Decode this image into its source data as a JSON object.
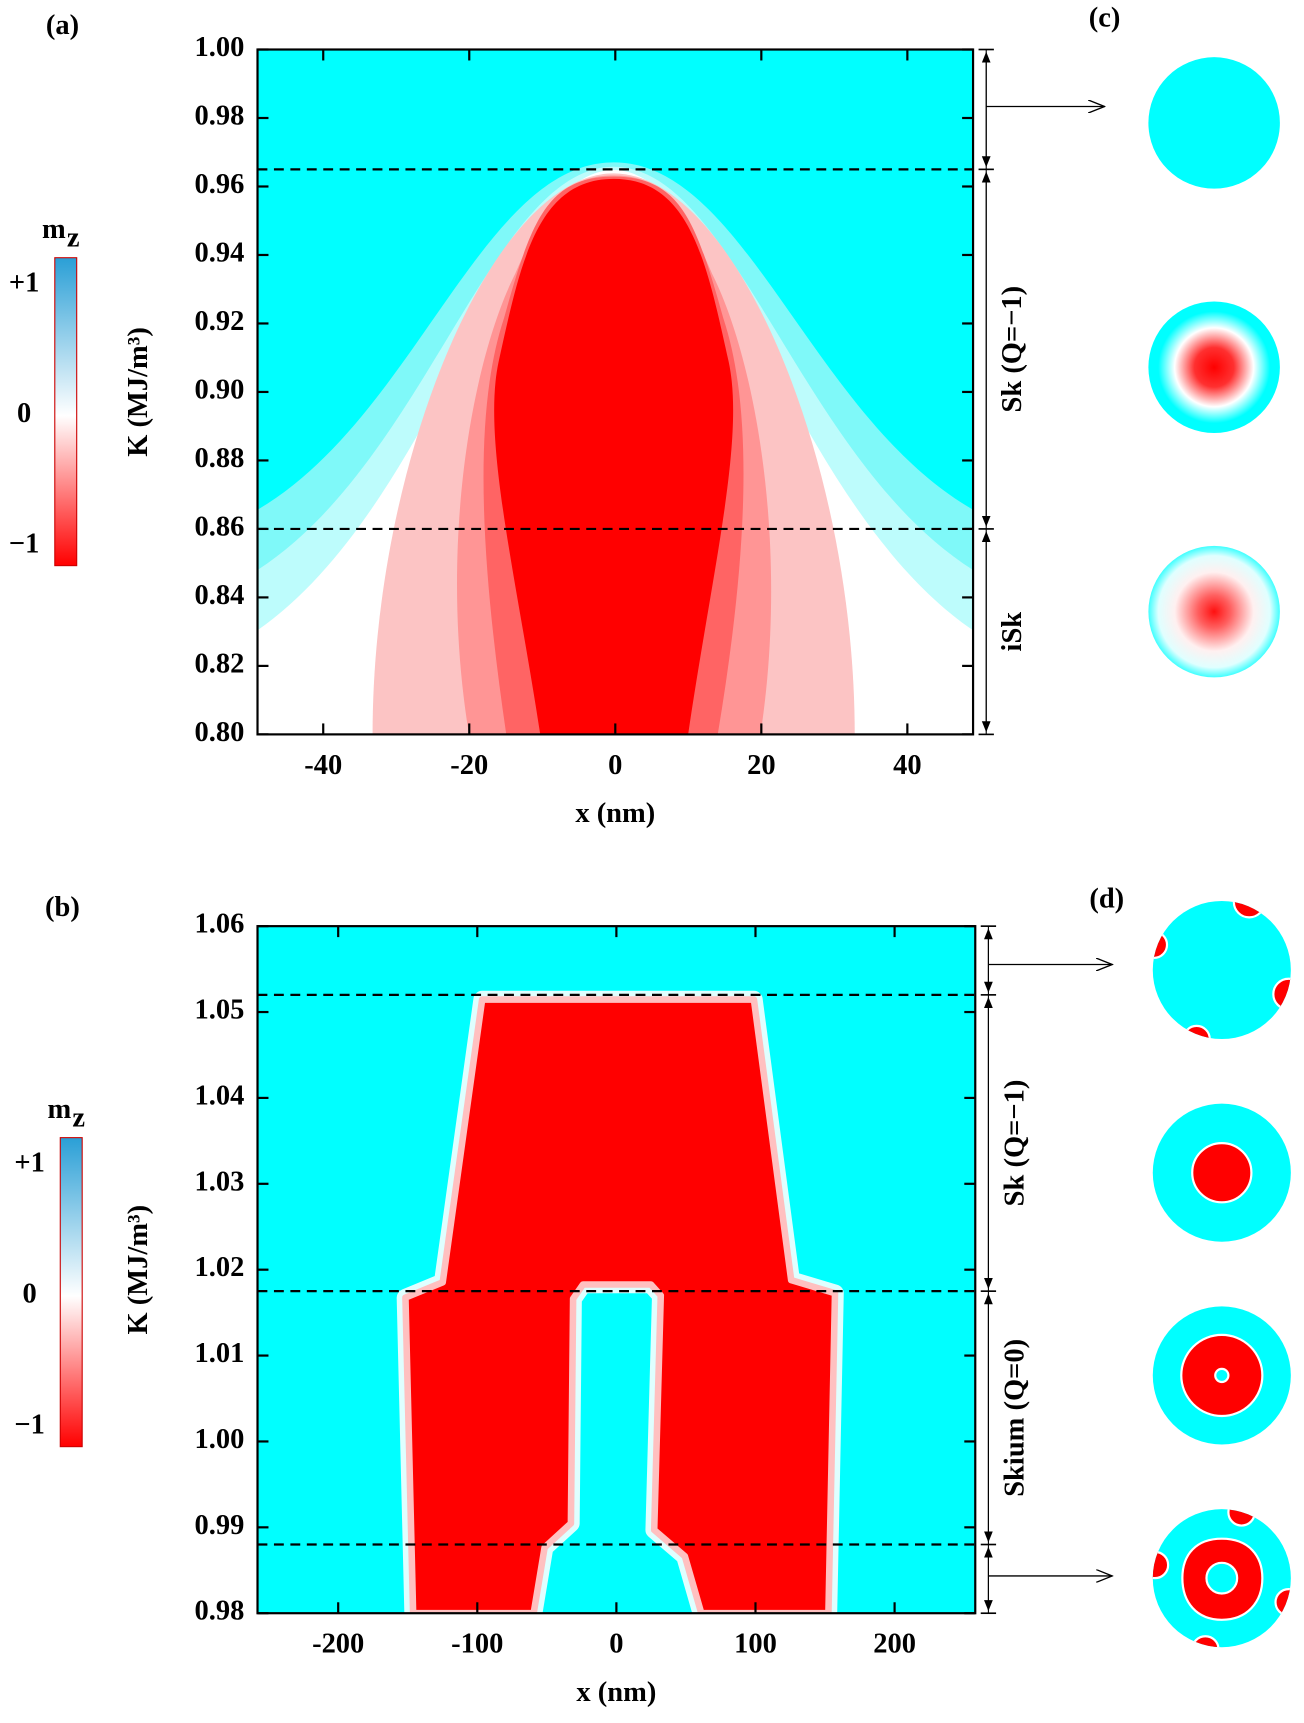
{
  "chart_data": [
    {
      "type": "contour",
      "panel_label": "(a)",
      "thumb_label": "(c)",
      "xlabel": "x (nm)",
      "ylabel": "K (MJ/m³)",
      "xlim": [
        -49,
        49
      ],
      "ylim": [
        0.8,
        1.0
      ],
      "xticks": [
        -40,
        -20,
        0,
        20,
        40
      ],
      "yticks": [
        {
          "value": 0.8,
          "label": "0.80"
        },
        0.82,
        0.84,
        0.86,
        0.88,
        {
          "value": 0.9,
          "label": "0.90"
        },
        0.92,
        0.94,
        0.96,
        0.98,
        {
          "value": 1.0,
          "label": "1.00"
        }
      ],
      "boundaries": [
        0.965,
        0.86
      ],
      "regions": [
        null,
        "Sk (Q=−1)",
        "iSk"
      ],
      "colorbar": {
        "label": "m",
        "subscript": "z",
        "clim": [
          -1.15,
          1.21
        ],
        "colors": [
          "#ff0000",
          "#ffffff",
          "#2a9fd6"
        ],
        "ticks": [
          {
            "value": 1,
            "label": "+1"
          },
          0,
          {
            "value": -1,
            "label": "−1"
          }
        ]
      }
    },
    {
      "type": "contour",
      "panel_label": "(b)",
      "thumb_label": "(d)",
      "xlabel": "x (nm)",
      "ylabel": "K (MJ/m³)",
      "xlim": [
        -258,
        258
      ],
      "ylim": [
        0.98,
        1.06
      ],
      "xticks": [
        -200,
        -100,
        0,
        100,
        200
      ],
      "yticks": [
        0.98,
        0.99,
        {
          "value": 1.0,
          "label": "1.00"
        },
        1.01,
        1.02,
        1.03,
        1.04,
        1.05,
        1.06
      ],
      "boundaries": [
        1.052,
        1.0175,
        0.988
      ],
      "regions": [
        null,
        "Sk (Q=−1)",
        "Skium (Q=0)",
        null
      ],
      "colorbar": {
        "label": "m",
        "subscript": "z",
        "clim": [
          -1.15,
          1.21
        ],
        "colors": [
          "#ff0000",
          "#ffffff",
          "#2a9fd6"
        ],
        "ticks": [
          {
            "value": 1,
            "label": "+1"
          },
          0,
          {
            "value": -1,
            "label": "−1"
          }
        ]
      }
    }
  ]
}
